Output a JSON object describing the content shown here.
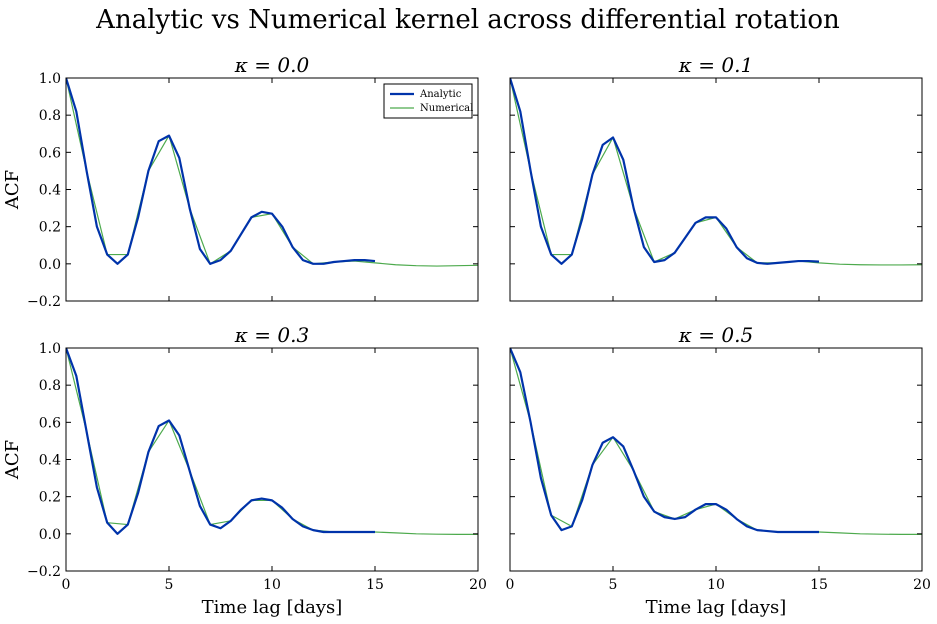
{
  "figure": {
    "title": "Analytic vs Numerical kernel across differential rotation"
  },
  "legend": {
    "analytic_label": "Analytic",
    "numerical_label": "Numerical"
  },
  "colors": {
    "analytic": "#0033aa",
    "numerical": "#4daa4d"
  },
  "chart_data": [
    {
      "type": "line",
      "title": "κ = 0.0",
      "xlabel": "",
      "ylabel": "ACF",
      "xlim": [
        0,
        20
      ],
      "ylim": [
        -0.2,
        1.0
      ],
      "xticks": [
        0,
        5,
        10,
        15,
        20
      ],
      "yticks": [
        -0.2,
        0.0,
        0.2,
        0.4,
        0.6,
        0.8,
        1.0
      ],
      "legend_position": "top-right",
      "series": [
        {
          "name": "Analytic",
          "x": [
            0,
            0.5,
            1.0,
            1.5,
            2.0,
            2.5,
            3.0,
            3.5,
            4.0,
            4.5,
            5.0,
            5.5,
            6.0,
            6.5,
            7.0,
            7.5,
            8.0,
            8.5,
            9.0,
            9.5,
            10.0,
            10.5,
            11.0,
            11.5,
            12.0,
            12.5,
            13.0,
            13.5,
            14.0,
            14.5,
            15.0
          ],
          "y": [
            1.0,
            0.82,
            0.5,
            0.2,
            0.05,
            0.0,
            0.05,
            0.25,
            0.5,
            0.66,
            0.69,
            0.57,
            0.3,
            0.08,
            0.0,
            0.02,
            0.07,
            0.16,
            0.25,
            0.28,
            0.27,
            0.2,
            0.09,
            0.02,
            0.0,
            0.0,
            0.01,
            0.015,
            0.02,
            0.02,
            0.015
          ]
        },
        {
          "name": "Numerical",
          "x": [
            0,
            1,
            2,
            3,
            4,
            5,
            6,
            7,
            8,
            9,
            10,
            11,
            12,
            13,
            14,
            15,
            16,
            17,
            18,
            19,
            20
          ],
          "y": [
            1.0,
            0.5,
            0.05,
            0.05,
            0.5,
            0.69,
            0.3,
            0.0,
            0.07,
            0.25,
            0.27,
            0.09,
            0.0,
            0.01,
            0.015,
            0.005,
            -0.005,
            -0.01,
            -0.012,
            -0.01,
            -0.008
          ]
        }
      ]
    },
    {
      "type": "line",
      "title": "κ = 0.1",
      "xlabel": "",
      "ylabel": "",
      "xlim": [
        0,
        20
      ],
      "ylim": [
        -0.2,
        1.0
      ],
      "xticks": [
        0,
        5,
        10,
        15,
        20
      ],
      "yticks": [
        -0.2,
        0.0,
        0.2,
        0.4,
        0.6,
        0.8,
        1.0
      ],
      "series": [
        {
          "name": "Analytic",
          "x": [
            0,
            0.5,
            1.0,
            1.5,
            2.0,
            2.5,
            3.0,
            3.5,
            4.0,
            4.5,
            5.0,
            5.5,
            6.0,
            6.5,
            7.0,
            7.5,
            8.0,
            8.5,
            9.0,
            9.5,
            10.0,
            10.5,
            11.0,
            11.5,
            12.0,
            12.5,
            13.0,
            13.5,
            14.0,
            14.5,
            15.0
          ],
          "y": [
            1.0,
            0.82,
            0.5,
            0.2,
            0.05,
            0.0,
            0.05,
            0.24,
            0.48,
            0.64,
            0.68,
            0.56,
            0.3,
            0.09,
            0.01,
            0.02,
            0.06,
            0.14,
            0.22,
            0.25,
            0.25,
            0.19,
            0.09,
            0.03,
            0.005,
            0.0,
            0.005,
            0.01,
            0.015,
            0.015,
            0.012
          ]
        },
        {
          "name": "Numerical",
          "x": [
            0,
            1,
            2,
            3,
            4,
            5,
            6,
            7,
            8,
            9,
            10,
            11,
            12,
            13,
            14,
            15,
            16,
            17,
            18,
            19,
            20
          ],
          "y": [
            1.0,
            0.5,
            0.05,
            0.05,
            0.48,
            0.68,
            0.3,
            0.01,
            0.06,
            0.22,
            0.25,
            0.09,
            0.005,
            0.005,
            0.015,
            0.005,
            -0.002,
            -0.005,
            -0.006,
            -0.006,
            -0.005
          ]
        }
      ]
    },
    {
      "type": "line",
      "title": "κ = 0.3",
      "xlabel": "Time lag [days]",
      "ylabel": "ACF",
      "xlim": [
        0,
        20
      ],
      "ylim": [
        -0.2,
        1.0
      ],
      "xticks": [
        0,
        5,
        10,
        15,
        20
      ],
      "yticks": [
        -0.2,
        0.0,
        0.2,
        0.4,
        0.6,
        0.8,
        1.0
      ],
      "series": [
        {
          "name": "Analytic",
          "x": [
            0,
            0.5,
            1.0,
            1.5,
            2.0,
            2.5,
            3.0,
            3.5,
            4.0,
            4.5,
            5.0,
            5.5,
            6.0,
            6.5,
            7.0,
            7.5,
            8.0,
            8.5,
            9.0,
            9.5,
            10.0,
            10.5,
            11.0,
            11.5,
            12.0,
            12.5,
            13.0,
            13.5,
            14.0,
            14.5,
            15.0
          ],
          "y": [
            1.0,
            0.85,
            0.55,
            0.25,
            0.06,
            0.0,
            0.05,
            0.22,
            0.44,
            0.58,
            0.61,
            0.53,
            0.34,
            0.15,
            0.05,
            0.03,
            0.07,
            0.13,
            0.18,
            0.19,
            0.18,
            0.14,
            0.08,
            0.04,
            0.02,
            0.01,
            0.01,
            0.01,
            0.01,
            0.01,
            0.01
          ]
        },
        {
          "name": "Numerical",
          "x": [
            0,
            1,
            2,
            3,
            4,
            5,
            6,
            7,
            8,
            9,
            10,
            11,
            12,
            13,
            14,
            15,
            16,
            17,
            18,
            19,
            20
          ],
          "y": [
            1.0,
            0.55,
            0.06,
            0.05,
            0.44,
            0.61,
            0.34,
            0.05,
            0.07,
            0.18,
            0.18,
            0.08,
            0.02,
            0.01,
            0.01,
            0.01,
            0.005,
            0.0,
            -0.002,
            -0.003,
            -0.003
          ]
        }
      ]
    },
    {
      "type": "line",
      "title": "κ = 0.5",
      "xlabel": "Time lag [days]",
      "ylabel": "",
      "xlim": [
        0,
        20
      ],
      "ylim": [
        -0.2,
        1.0
      ],
      "xticks": [
        0,
        5,
        10,
        15,
        20
      ],
      "yticks": [
        -0.2,
        0.0,
        0.2,
        0.4,
        0.6,
        0.8,
        1.0
      ],
      "series": [
        {
          "name": "Analytic",
          "x": [
            0,
            0.5,
            1.0,
            1.5,
            2.0,
            2.5,
            3.0,
            3.5,
            4.0,
            4.5,
            5.0,
            5.5,
            6.0,
            6.5,
            7.0,
            7.5,
            8.0,
            8.5,
            9.0,
            9.5,
            10.0,
            10.5,
            11.0,
            11.5,
            12.0,
            12.5,
            13.0,
            13.5,
            14.0,
            14.5,
            15.0
          ],
          "y": [
            1.0,
            0.87,
            0.6,
            0.3,
            0.1,
            0.02,
            0.04,
            0.18,
            0.37,
            0.49,
            0.52,
            0.47,
            0.34,
            0.2,
            0.12,
            0.09,
            0.08,
            0.09,
            0.13,
            0.16,
            0.16,
            0.13,
            0.08,
            0.04,
            0.02,
            0.015,
            0.01,
            0.01,
            0.01,
            0.01,
            0.01
          ]
        },
        {
          "name": "Numerical",
          "x": [
            0,
            1,
            2,
            3,
            4,
            5,
            6,
            7,
            8,
            9,
            10,
            11,
            12,
            13,
            14,
            15,
            16,
            17,
            18,
            19,
            20
          ],
          "y": [
            1.0,
            0.6,
            0.1,
            0.04,
            0.37,
            0.52,
            0.34,
            0.12,
            0.08,
            0.13,
            0.16,
            0.08,
            0.02,
            0.01,
            0.01,
            0.01,
            0.005,
            0.0,
            -0.002,
            -0.003,
            -0.003
          ]
        }
      ]
    }
  ]
}
